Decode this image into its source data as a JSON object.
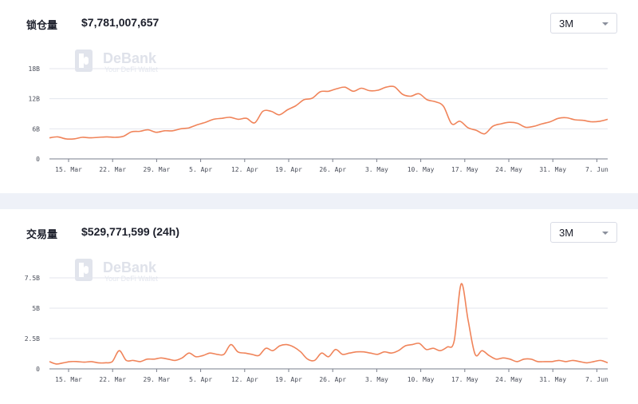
{
  "panels": {
    "tvl": {
      "title": "锁仓量",
      "value": "$7,781,007,657",
      "range": "3M"
    },
    "volume": {
      "title": "交易量",
      "value": "$529,771,599 (24h)",
      "range": "3M"
    }
  },
  "watermark": {
    "brand": "DeBank",
    "tagline": "Your DeFi Wallet"
  },
  "colors": {
    "line": "#f0845a",
    "grid": "#e3e6ee",
    "axis": "#7a7f8c",
    "band": "#eef1f8"
  },
  "icons": {
    "logo": "debank-logo-icon",
    "caret": "chevron-down-icon"
  },
  "chart_data": [
    {
      "type": "line",
      "title": "锁仓量",
      "x_labels": [
        "15. Mar",
        "22. Mar",
        "29. Mar",
        "5. Apr",
        "12. Apr",
        "19. Apr",
        "26. Apr",
        "3. May",
        "10. May",
        "17. May",
        "24. May",
        "31. May",
        "7. Jun"
      ],
      "y_ticks": [
        "0",
        "6B",
        "12B",
        "18B"
      ],
      "ylim": [
        0,
        18
      ],
      "grid": true,
      "series": [
        {
          "values": [
            4.2,
            4.4,
            4.0,
            4.0,
            4.3,
            4.2,
            4.3,
            4.4,
            4.3,
            4.5,
            5.4,
            5.5,
            5.8,
            5.3,
            5.6,
            5.6,
            6.0,
            6.2,
            6.8,
            7.3,
            7.9,
            8.1,
            8.3,
            7.9,
            8.1,
            7.2,
            9.5,
            9.5,
            8.8,
            9.8,
            10.6,
            11.8,
            12.1,
            13.4,
            13.5,
            14.0,
            14.3,
            13.5,
            14.1,
            13.6,
            13.7,
            14.3,
            14.4,
            12.9,
            12.5,
            13.0,
            11.8,
            11.4,
            10.5,
            7.0,
            7.5,
            6.2,
            5.7,
            5.0,
            6.5,
            7.0,
            7.3,
            7.1,
            6.3,
            6.5,
            7.0,
            7.4,
            8.1,
            8.2,
            7.8,
            7.7,
            7.4,
            7.5,
            7.9
          ]
        }
      ]
    },
    {
      "type": "line",
      "title": "交易量",
      "x_labels": [
        "15. Mar",
        "22. Mar",
        "29. Mar",
        "5. Apr",
        "12. Apr",
        "19. Apr",
        "26. Apr",
        "3. May",
        "10. May",
        "17. May",
        "24. May",
        "31. May",
        "7. Jun"
      ],
      "y_ticks": [
        "0",
        "2.5B",
        "5B",
        "7.5B"
      ],
      "ylim": [
        0,
        7.5
      ],
      "grid": true,
      "series": [
        {
          "values": [
            0.6,
            0.4,
            0.5,
            0.6,
            0.6,
            0.55,
            0.6,
            0.5,
            0.5,
            0.6,
            1.5,
            0.7,
            0.7,
            0.6,
            0.8,
            0.8,
            0.9,
            0.8,
            0.7,
            0.9,
            1.3,
            1.0,
            1.1,
            1.3,
            1.2,
            1.2,
            2.0,
            1.4,
            1.3,
            1.2,
            1.1,
            1.7,
            1.5,
            1.9,
            2.0,
            1.8,
            1.4,
            0.8,
            0.7,
            1.3,
            1.0,
            1.6,
            1.2,
            1.3,
            1.4,
            1.4,
            1.3,
            1.2,
            1.4,
            1.3,
            1.5,
            1.9,
            2.0,
            2.1,
            1.6,
            1.7,
            1.5,
            1.8,
            2.3,
            7.0,
            4.0,
            1.2,
            1.5,
            1.1,
            0.8,
            0.9,
            0.8,
            0.6,
            0.8,
            0.8,
            0.6,
            0.6,
            0.6,
            0.7,
            0.6,
            0.7,
            0.6,
            0.5,
            0.6,
            0.7,
            0.5
          ]
        }
      ]
    }
  ]
}
